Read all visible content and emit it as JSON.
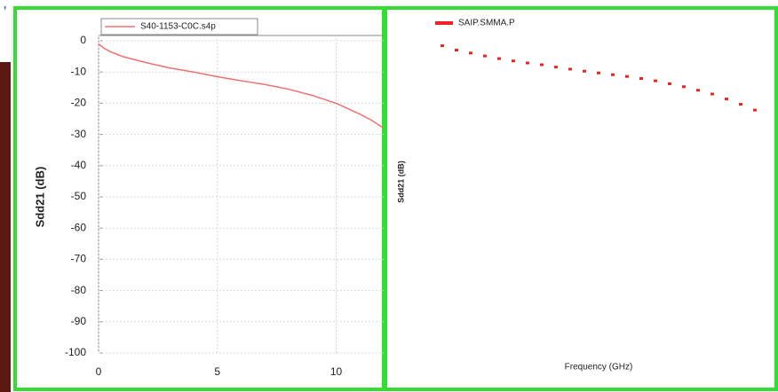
{
  "chart_data": [
    {
      "type": "line",
      "line_style": "solid",
      "y_label": "Sdd21 (dB)",
      "grid": true,
      "x": [
        0,
        0.25,
        0.5,
        1,
        2,
        3,
        4,
        5,
        6,
        7,
        8,
        9,
        10,
        11,
        11.5,
        12
      ],
      "series": [
        {
          "name": "S40-1153-C0C.s4p",
          "color": "#f07070",
          "values": [
            -1,
            -2.5,
            -3.5,
            -5,
            -7,
            -8.7,
            -10,
            -11.5,
            -12.8,
            -14,
            -15.5,
            -17.5,
            -20,
            -23.5,
            -25.5,
            -28
          ]
        }
      ],
      "xlim": [
        0,
        12
      ],
      "ylim": [
        -100,
        0
      ],
      "xticks": [
        0,
        5,
        10
      ],
      "yticks": [
        0,
        -10,
        -20,
        -30,
        -40,
        -50,
        -60,
        -70,
        -80,
        -90,
        -100
      ]
    },
    {
      "type": "line",
      "line_style": "dotted",
      "x_label": "Frequency (GHz)",
      "y_label": "Sdd21 (dB)",
      "grid": false,
      "x": [
        0.5,
        1,
        1.5,
        2,
        2.5,
        3,
        3.5,
        4,
        4.5,
        5,
        5.5,
        6,
        6.5,
        7,
        7.5,
        8,
        8.5,
        9,
        9.5,
        10,
        10.5,
        11,
        11.5
      ],
      "series": [
        {
          "name": "SAIP.SMMA.P",
          "color": "#ee2222",
          "values": [
            -3.5,
            -5,
            -6,
            -7,
            -7.9,
            -8.7,
            -9.4,
            -10,
            -10.8,
            -11.5,
            -12.2,
            -12.8,
            -13.4,
            -14,
            -14.7,
            -15.5,
            -16.5,
            -17.5,
            -18.7,
            -20,
            -21.7,
            -23.5,
            -25.5
          ]
        }
      ],
      "xlim": [
        0,
        12
      ],
      "ylim": [
        -100,
        0
      ]
    }
  ]
}
